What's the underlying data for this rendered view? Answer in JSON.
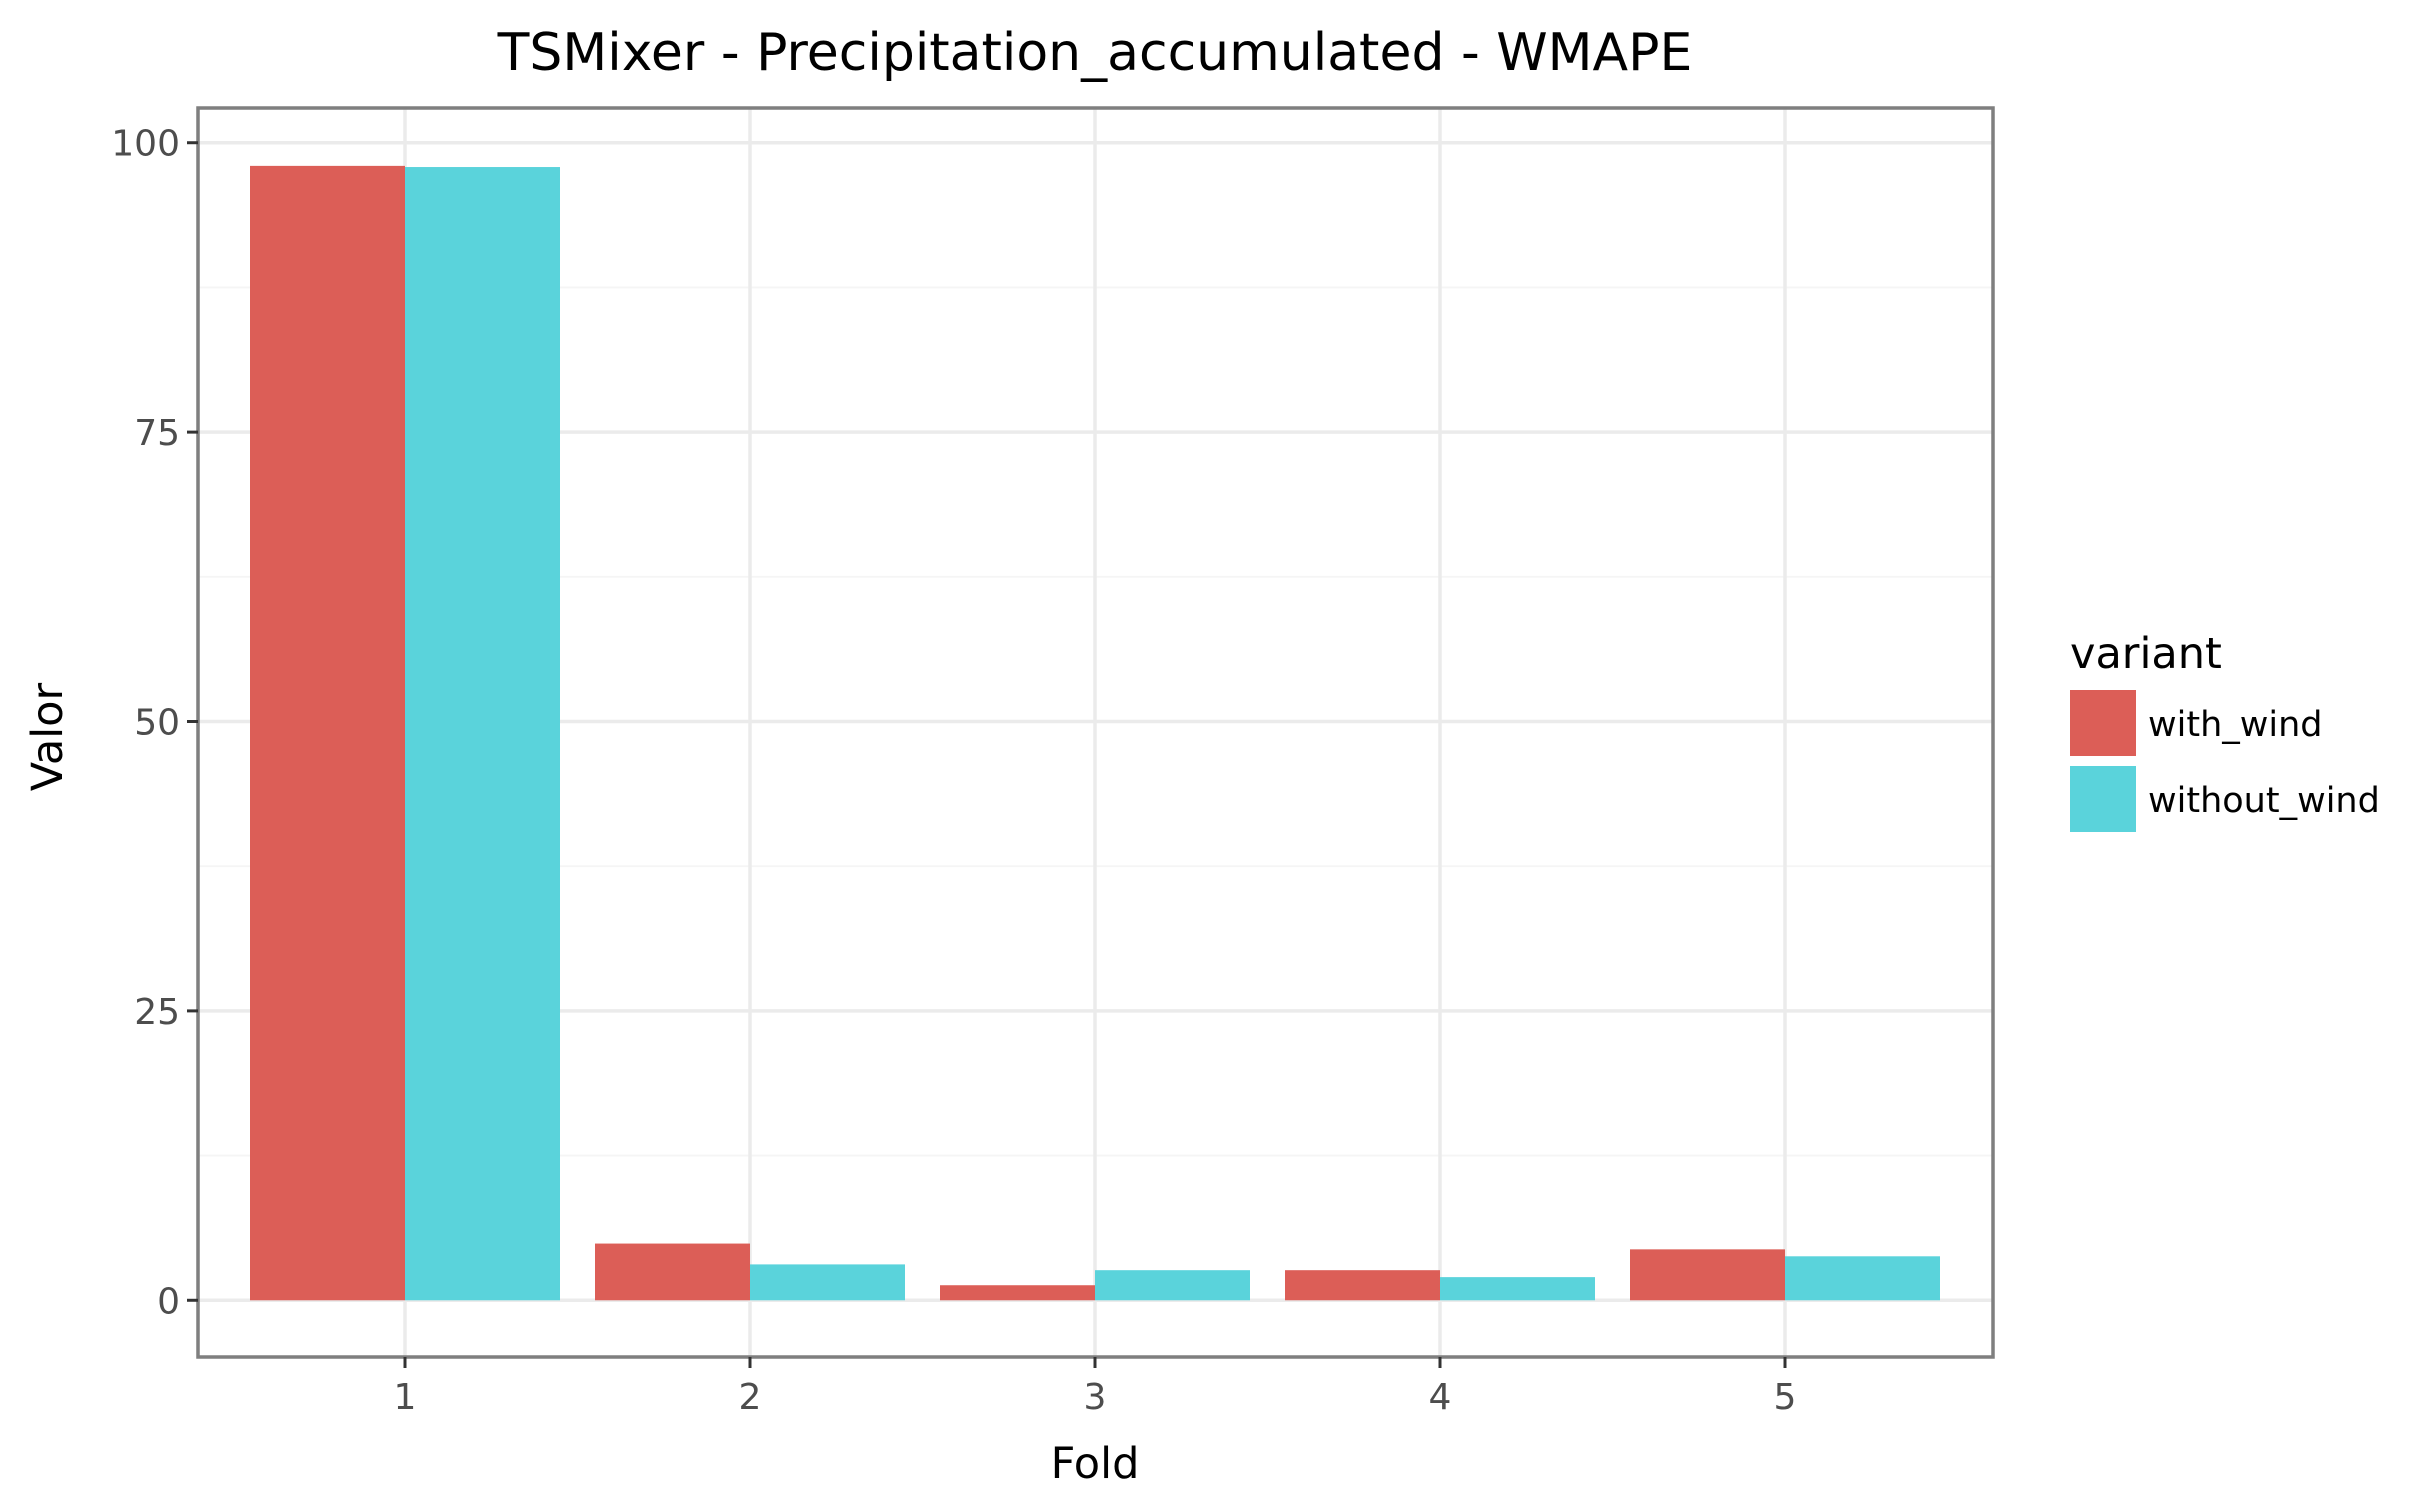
{
  "chart_data": {
    "type": "bar",
    "title": "TSMixer - Precipitation_accumulated - WMAPE",
    "xlabel": "Fold",
    "ylabel": "Valor",
    "categories": [
      "1",
      "2",
      "3",
      "4",
      "5"
    ],
    "series": [
      {
        "name": "with_wind",
        "color": "#dc5e57",
        "values": [
          98.0,
          4.9,
          1.3,
          2.6,
          4.4
        ]
      },
      {
        "name": "without_wind",
        "color": "#5ad3db",
        "values": [
          97.9,
          3.1,
          2.6,
          2.0,
          3.8
        ]
      }
    ],
    "ylim": [
      -4.9,
      103.0
    ],
    "yticks": [
      0,
      25,
      50,
      75,
      100
    ],
    "ytick_labels": [
      "0",
      "25",
      "50",
      "75",
      "100"
    ],
    "grid": true,
    "legend": {
      "title": "variant",
      "placement": "right"
    }
  }
}
